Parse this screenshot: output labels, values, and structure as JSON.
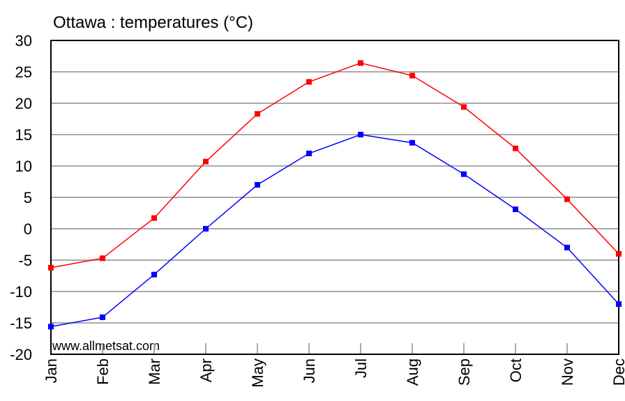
{
  "chart_data": {
    "type": "line",
    "title": "Ottawa : temperatures (°C)",
    "watermark": "www.allmetsat.com",
    "categories": [
      "Jan",
      "Feb",
      "Mar",
      "Apr",
      "May",
      "Jun",
      "Jul",
      "Aug",
      "Sep",
      "Oct",
      "Nov",
      "Dec"
    ],
    "series": [
      {
        "color": "#ff0000",
        "values": [
          -6.2,
          -4.7,
          1.7,
          10.7,
          18.3,
          23.4,
          26.4,
          24.4,
          19.4,
          12.8,
          4.7,
          -4.0
        ]
      },
      {
        "color": "#0000ff",
        "values": [
          -15.6,
          -14.1,
          -7.3,
          0,
          7.0,
          12.0,
          15.0,
          13.7,
          8.7,
          3.1,
          -3.0,
          -12.0
        ]
      }
    ],
    "ylim": [
      -20,
      30
    ],
    "yticks": [
      -20,
      -15,
      -10,
      -5,
      0,
      5,
      10,
      15,
      20,
      25,
      30
    ],
    "grid": true
  }
}
